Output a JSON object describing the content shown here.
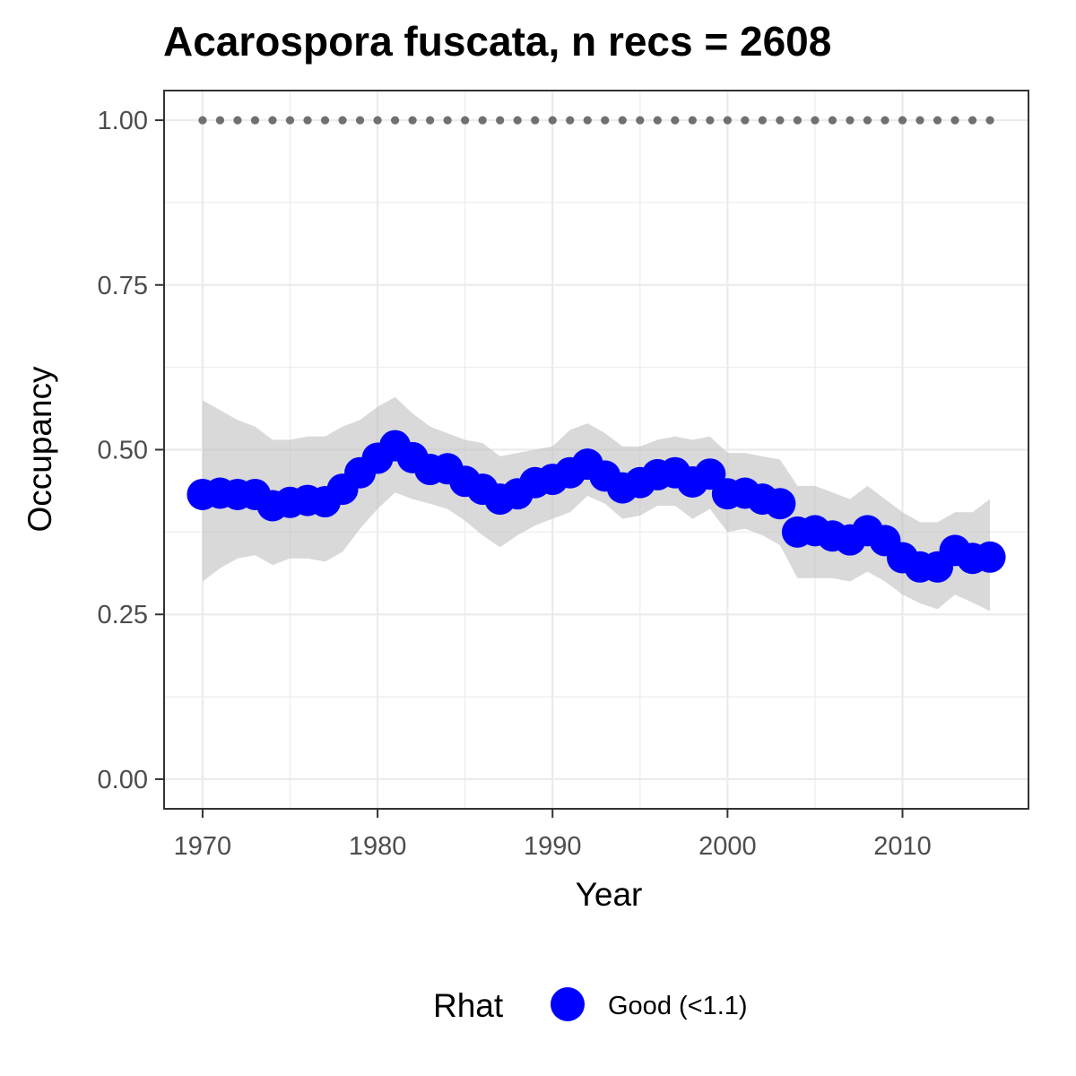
{
  "chart_data": {
    "type": "line",
    "title": "Acarospora fuscata, n recs = 2608",
    "xlabel": "Year",
    "ylabel": "Occupancy",
    "xlim": [
      1967.8,
      1917.2
    ],
    "ylim": [
      -0.045,
      1.045
    ],
    "x_ticks": [
      1970,
      1980,
      1990,
      2000,
      2010
    ],
    "x_tick_labels": [
      "1970",
      "1980",
      "1990",
      "2000",
      "2010"
    ],
    "y_ticks": [
      0,
      0.25,
      0.5,
      0.75,
      1.0
    ],
    "y_tick_labels": [
      "0.00",
      "0.25",
      "0.50",
      "0.75",
      "1.00"
    ],
    "grid": true,
    "legend": {
      "position": "bottom",
      "title": "Rhat",
      "entries": [
        {
          "label": "Good (<1.1)",
          "color": "#0000ff"
        }
      ]
    },
    "colors": {
      "points": "#0000ff",
      "ribbon": "#bfbfbf",
      "reference": "#707070",
      "grid": "#ebebeb",
      "border": "#333333"
    },
    "x": [
      1970,
      1971,
      1972,
      1973,
      1974,
      1975,
      1976,
      1977,
      1978,
      1979,
      1980,
      1981,
      1982,
      1983,
      1984,
      1985,
      1986,
      1987,
      1988,
      1989,
      1990,
      1991,
      1992,
      1993,
      1994,
      1995,
      1996,
      1997,
      1998,
      1999,
      2000,
      2001,
      2002,
      2003,
      2004,
      2005,
      2006,
      2007,
      2008,
      2009,
      2010,
      2011,
      2012,
      2013,
      2014,
      2015
    ],
    "series": [
      {
        "values": [
          0.432,
          0.434,
          0.432,
          0.432,
          0.415,
          0.42,
          0.423,
          0.421,
          0.44,
          0.465,
          0.487,
          0.506,
          0.488,
          0.47,
          0.471,
          0.452,
          0.44,
          0.425,
          0.433,
          0.45,
          0.455,
          0.465,
          0.478,
          0.46,
          0.442,
          0.45,
          0.462,
          0.465,
          0.451,
          0.463,
          0.433,
          0.434,
          0.425,
          0.418,
          0.375,
          0.377,
          0.369,
          0.363,
          0.377,
          0.362,
          0.336,
          0.322,
          0.322,
          0.347,
          0.335,
          0.337
        ],
        "lower": [
          0.3,
          0.32,
          0.335,
          0.34,
          0.325,
          0.335,
          0.335,
          0.33,
          0.345,
          0.38,
          0.41,
          0.435,
          0.425,
          0.418,
          0.41,
          0.392,
          0.37,
          0.352,
          0.37,
          0.385,
          0.395,
          0.405,
          0.43,
          0.418,
          0.395,
          0.4,
          0.415,
          0.415,
          0.395,
          0.41,
          0.375,
          0.38,
          0.37,
          0.355,
          0.305,
          0.305,
          0.305,
          0.3,
          0.315,
          0.3,
          0.28,
          0.267,
          0.258,
          0.28,
          0.268,
          0.255
        ],
        "upper": [
          0.575,
          0.56,
          0.545,
          0.535,
          0.515,
          0.515,
          0.52,
          0.52,
          0.535,
          0.545,
          0.565,
          0.58,
          0.555,
          0.535,
          0.525,
          0.515,
          0.51,
          0.49,
          0.495,
          0.5,
          0.505,
          0.53,
          0.54,
          0.525,
          0.505,
          0.505,
          0.515,
          0.52,
          0.515,
          0.52,
          0.495,
          0.495,
          0.49,
          0.485,
          0.445,
          0.445,
          0.435,
          0.425,
          0.445,
          0.425,
          0.405,
          0.39,
          0.39,
          0.405,
          0.405,
          0.425
        ]
      },
      {
        "values": [
          1,
          1,
          1,
          1,
          1,
          1,
          1,
          1,
          1,
          1,
          1,
          1,
          1,
          1,
          1,
          1,
          1,
          1,
          1,
          1,
          1,
          1,
          1,
          1,
          1,
          1,
          1,
          1,
          1,
          1,
          1,
          1,
          1,
          1,
          1,
          1,
          1,
          1,
          1,
          1,
          1,
          1,
          1,
          1,
          1,
          1
        ]
      }
    ]
  }
}
